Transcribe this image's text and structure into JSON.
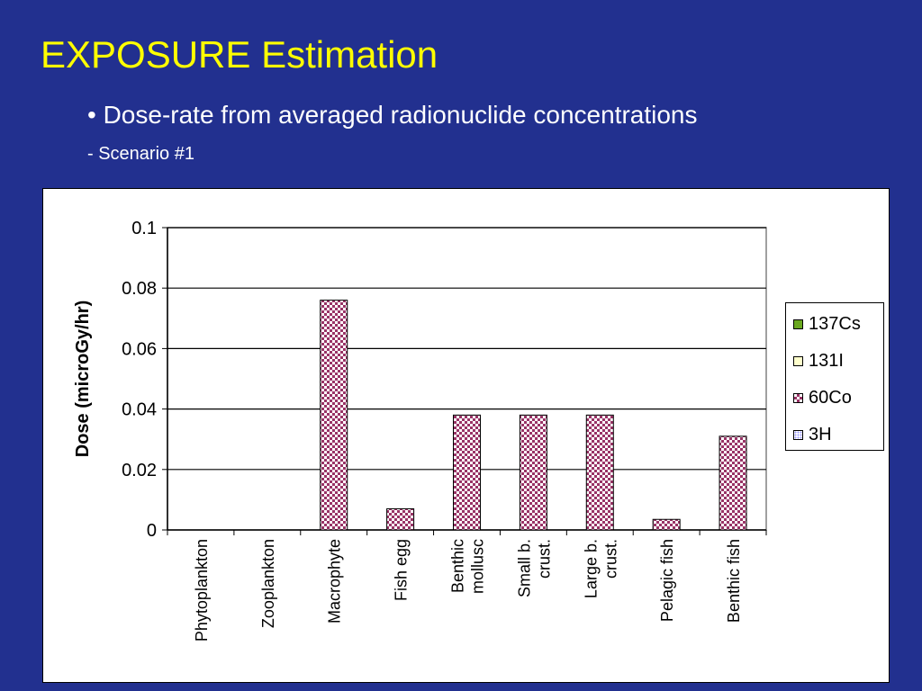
{
  "slide": {
    "title": "EXPOSURE Estimation",
    "bullet": "• Dose-rate from averaged radionuclide concentrations",
    "subbullet": "- Scenario #1"
  },
  "chart_data": {
    "type": "bar",
    "ylabel": "Dose (microGy/hr)",
    "xlabel": "",
    "ylim": [
      0,
      0.1
    ],
    "yticks": [
      "0",
      "0.02",
      "0.04",
      "0.06",
      "0.08",
      "0.1"
    ],
    "categories": [
      [
        "Phytoplankton"
      ],
      [
        "Zooplankton"
      ],
      [
        "Macrophyte"
      ],
      [
        "Fish egg"
      ],
      [
        "Benthic",
        "mollusc"
      ],
      [
        "Small b.",
        "crust."
      ],
      [
        "Large b.",
        "crust."
      ],
      [
        "Pelagic fish"
      ],
      [
        "Benthic fish"
      ]
    ],
    "grid": true,
    "legend_position": "right",
    "series": [
      {
        "name": "137Cs",
        "color": "#6aa820",
        "pattern": "solid",
        "values": [
          0,
          0,
          0,
          0,
          0,
          0,
          0,
          0,
          0
        ]
      },
      {
        "name": "131I",
        "color": "#ffffcc",
        "pattern": "solid",
        "values": [
          0,
          0,
          0,
          0,
          0,
          0,
          0,
          0,
          0
        ]
      },
      {
        "name": "60Co",
        "color": "#993366",
        "pattern": "checker",
        "values": [
          0,
          0,
          0.076,
          0.007,
          0.038,
          0.038,
          0.038,
          0.0035,
          0.031
        ]
      },
      {
        "name": "3H",
        "color": "#9999ff",
        "pattern": "dots",
        "values": [
          0,
          0,
          0,
          0,
          0,
          0,
          0,
          0,
          0
        ]
      }
    ]
  }
}
